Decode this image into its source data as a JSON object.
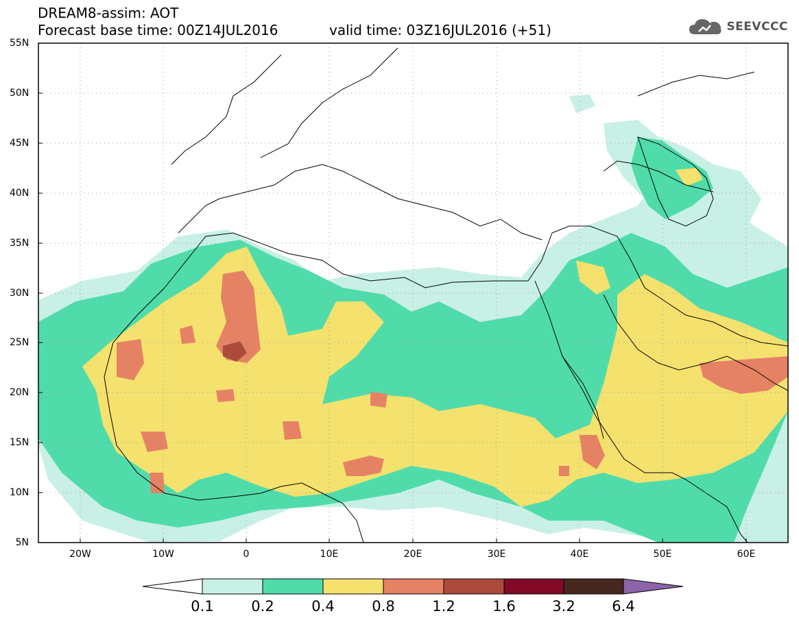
{
  "header": {
    "title": "DREAM8-assim: AOT",
    "base_time": "Forecast base time: 00Z14JUL2016",
    "valid_time": "valid time: 03Z16JUL2016 (+51)"
  },
  "logo": {
    "text": "SEEVCCC",
    "icon": "cloud-icon"
  },
  "map": {
    "lon_range": [
      -25,
      65
    ],
    "lat_range": [
      5,
      55
    ],
    "lat_labels": [
      "55N",
      "50N",
      "45N",
      "40N",
      "35N",
      "30N",
      "25N",
      "20N",
      "15N",
      "10N",
      "5N"
    ],
    "lon_labels": [
      "20W",
      "10W",
      "0",
      "10E",
      "20E",
      "30E",
      "40E",
      "50E",
      "60E"
    ]
  },
  "colorbar": {
    "labels": [
      "0.1",
      "0.2",
      "0.4",
      "0.8",
      "1.2",
      "1.6",
      "3.2",
      "6.4"
    ],
    "colors": [
      "#ffffff",
      "#c8f0e6",
      "#50dcaa",
      "#f5e16e",
      "#e68264",
      "#aa4b3c",
      "#820a28",
      "#46281e",
      "#8c64aa"
    ]
  }
}
